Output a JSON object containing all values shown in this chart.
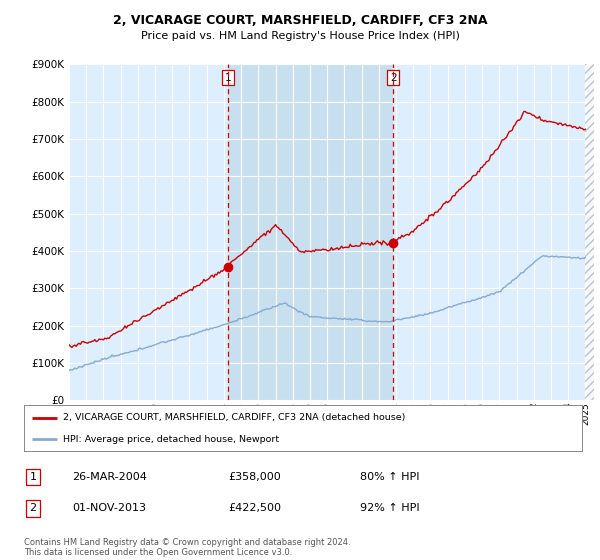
{
  "title_line1": "2, VICARAGE COURT, MARSHFIELD, CARDIFF, CF3 2NA",
  "title_line2": "Price paid vs. HM Land Registry's House Price Index (HPI)",
  "ytick_values": [
    0,
    100000,
    200000,
    300000,
    400000,
    500000,
    600000,
    700000,
    800000,
    900000
  ],
  "ylim": [
    0,
    900000
  ],
  "xlim_start": 1995.0,
  "xlim_end": 2025.5,
  "purchase1_x": 2004.23,
  "purchase1_y": 358000,
  "purchase1_label": "26-MAR-2004",
  "purchase1_price": "£358,000",
  "purchase1_hpi": "80% ↑ HPI",
  "purchase2_x": 2013.83,
  "purchase2_y": 422500,
  "purchase2_label": "01-NOV-2013",
  "purchase2_price": "£422,500",
  "purchase2_hpi": "92% ↑ HPI",
  "legend_line1": "2, VICARAGE COURT, MARSHFIELD, CARDIFF, CF3 2NA (detached house)",
  "legend_line2": "HPI: Average price, detached house, Newport",
  "footnote": "Contains HM Land Registry data © Crown copyright and database right 2024.\nThis data is licensed under the Open Government Licence v3.0.",
  "line_color_red": "#cc0000",
  "line_color_blue": "#88aacc",
  "vline_color": "#cc0000",
  "bg_color": "#ddeeff",
  "shade_color": "#c8dff0",
  "grid_color": "#ffffff",
  "marker_color_red": "#cc0000"
}
